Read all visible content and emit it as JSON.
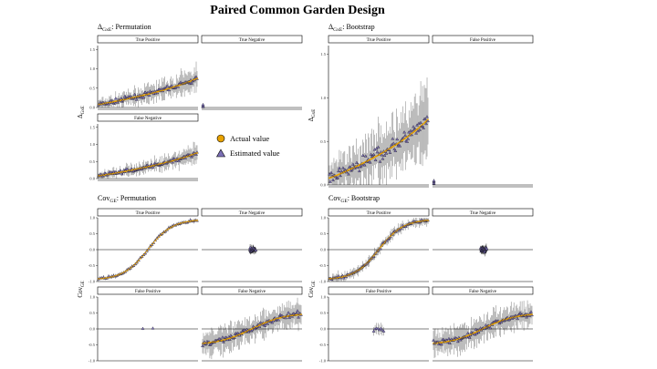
{
  "figure_title": "Paired Common Garden Design",
  "colors": {
    "actual": "#e8a200",
    "estimated": "#7b6fb5",
    "bar": "#000000"
  },
  "legend": {
    "actual": "Actual value",
    "estimated": "Estimated value"
  },
  "panels": [
    {
      "id": "gxe_perm",
      "title_sym": "Δ",
      "title_sub": "GxE",
      "title_rest": ": Permutation",
      "ylabel_sym": "Δ",
      "ylabel_sub": "GxE",
      "facets": [
        {
          "label": "True Positive",
          "curve": "delta",
          "noise": 0.55,
          "level": 0.35,
          "n": 110
        },
        {
          "label": "True Negative",
          "curve": "flat",
          "noise": 0.05,
          "level": 0.0,
          "n": 6
        },
        {
          "label": "False Negative",
          "curve": "delta",
          "noise": 0.45,
          "level": 0.3,
          "n": 110
        }
      ]
    },
    {
      "id": "gxe_boot",
      "title_sym": "Δ",
      "title_sub": "GxE",
      "title_rest": ": Bootstrap",
      "ylabel_sym": "Δ",
      "ylabel_sub": "GxE",
      "facets": [
        {
          "label": "True Positive",
          "curve": "delta",
          "noise": 0.7,
          "level": 0.35,
          "n": 110
        },
        {
          "label": "False Positive",
          "curve": "flat",
          "noise": 0.05,
          "level": 0.0,
          "n": 6
        }
      ]
    },
    {
      "id": "cov_perm",
      "title_sym": "Cov",
      "title_sub": "GE",
      "title_rest": ": Permutation",
      "ylabel_sym": "Cov",
      "ylabel_sub": "GE",
      "facets": [
        {
          "label": "True Positive",
          "curve": "cov",
          "noise": 0.15,
          "n": 60
        },
        {
          "label": "True Negative",
          "curve": "zero",
          "noise": 0.25,
          "n": 40
        },
        {
          "label": "False Positive",
          "curve": "zero",
          "noise": 0.1,
          "n": 2
        },
        {
          "label": "False Negative",
          "curve": "covsmall",
          "noise": 0.9,
          "n": 110
        }
      ]
    },
    {
      "id": "cov_boot",
      "title_sym": "Cov",
      "title_sub": "GE",
      "title_rest": ": Bootstrap",
      "ylabel_sym": "Cov",
      "ylabel_sub": "GE",
      "facets": [
        {
          "label": "True Positive",
          "curve": "cov",
          "noise": 0.35,
          "n": 90
        },
        {
          "label": "True Negative",
          "curve": "zero",
          "noise": 0.25,
          "n": 40
        },
        {
          "label": "False Positive",
          "curve": "zero",
          "noise": 0.35,
          "n": 8
        },
        {
          "label": "False Negative",
          "curve": "covsmall",
          "noise": 0.9,
          "n": 110
        }
      ]
    }
  ],
  "chart_data": [
    {
      "type": "scatter",
      "title": "ΔGxE: Permutation",
      "ylabel": "ΔGxE",
      "facets": [
        "True Positive",
        "True Negative",
        "False Negative"
      ],
      "yticks": [
        "0.0",
        "0.5",
        "1.0",
        "1.5"
      ],
      "ylim": [
        0,
        1.6
      ],
      "series": [
        {
          "name": "Actual value"
        },
        {
          "name": "Estimated value"
        }
      ]
    },
    {
      "type": "scatter",
      "title": "ΔGxE: Bootstrap",
      "ylabel": "ΔGxE",
      "facets": [
        "True Positive",
        "False Positive"
      ],
      "yticks": [
        "0.0",
        "0.5",
        "1.0",
        "1.5"
      ],
      "ylim": [
        0,
        1.6
      ],
      "series": [
        {
          "name": "Actual value"
        },
        {
          "name": "Estimated value"
        }
      ]
    },
    {
      "type": "scatter",
      "title": "CovGE: Permutation",
      "ylabel": "CovGE",
      "facets": [
        "True Positive",
        "True Negative",
        "False Positive",
        "False Negative"
      ],
      "yticks": [
        "-1.0",
        "-0.5",
        "0.0",
        "0.5",
        "1.0"
      ],
      "ylim": [
        -1,
        1
      ],
      "series": [
        {
          "name": "Actual value"
        },
        {
          "name": "Estimated value"
        }
      ]
    },
    {
      "type": "scatter",
      "title": "CovGE: Bootstrap",
      "ylabel": "CovGE",
      "facets": [
        "True Positive",
        "True Negative",
        "False Positive",
        "False Negative"
      ],
      "yticks": [
        "-1.0",
        "-0.5",
        "0.0",
        "0.5",
        "1.0"
      ],
      "ylim": [
        -1,
        1
      ],
      "series": [
        {
          "name": "Actual value"
        },
        {
          "name": "Estimated value"
        }
      ]
    }
  ],
  "ticks": {
    "delta": [
      "0.0",
      "0.5",
      "1.0",
      "1.5"
    ],
    "cov": [
      "-1.0",
      "-0.5",
      "0.0",
      "0.5",
      "1.0"
    ]
  }
}
